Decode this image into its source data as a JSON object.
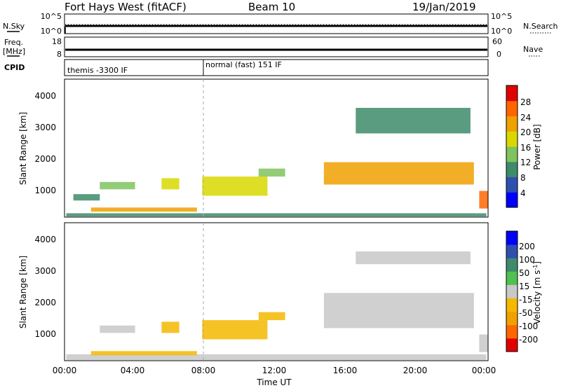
{
  "header": {
    "station": "Fort Hays West (fitACF)",
    "beam": "Beam 10",
    "date": "19/Jan/2019"
  },
  "top_panels": {
    "nsky_label": "N.Sky",
    "nsky_ticks": [
      "10^5",
      "10^0"
    ],
    "nsearch_label": "N.Search",
    "nsearch_ticks": [
      "10^5",
      "10^0"
    ],
    "freq_label_1": "Freq.",
    "freq_label_2": "[MHz]",
    "freq_ticks": [
      "18",
      "8"
    ],
    "nave_label": "Nave",
    "nave_ticks": [
      "60",
      "0"
    ],
    "cpid_label": "CPID",
    "cpid_segments": [
      "themis -3300 IF",
      "normal (fast) 151 IF"
    ]
  },
  "axes": {
    "ylabel": "Slant Range [km]",
    "y_ticks": [
      "1000",
      "2000",
      "3000",
      "4000"
    ],
    "xlabel": "Time UT",
    "x_ticks": [
      "00:00",
      "04:00",
      "08:00",
      "12:00",
      "16:00",
      "20:00",
      "00:00"
    ]
  },
  "colorbars": {
    "power": {
      "label": "Power [dB]",
      "ticks": [
        "4",
        "8",
        "12",
        "16",
        "20",
        "24",
        "28"
      ]
    },
    "velocity": {
      "label": "Velocity [m s",
      "label_sup": "-1",
      "label_end": "]",
      "ticks": [
        "200",
        "100",
        "50",
        "15",
        "-15",
        "-50",
        "-100",
        "-200"
      ]
    }
  },
  "chart_data": [
    {
      "type": "heatmap",
      "title": "Power",
      "xlabel": "Time UT",
      "ylabel": "Slant Range [km]",
      "x_range_hours": [
        0,
        24
      ],
      "ylim_km": [
        180,
        4500
      ],
      "colorbar": {
        "label": "Power [dB]",
        "range": [
          0,
          30
        ],
        "colors": [
          "#0000ff",
          "#2f4fb0",
          "#3d8b6a",
          "#7fc35f",
          "#d8d800",
          "#f0a000",
          "#ff6600",
          "#e00000"
        ]
      },
      "regions": [
        {
          "t": [
            0.1,
            23.9
          ],
          "r": [
            200,
            300
          ],
          "value": 10
        },
        {
          "t": [
            1.5,
            7.5
          ],
          "r": [
            350,
            480
          ],
          "value": 20
        },
        {
          "t": [
            0.5,
            2.0
          ],
          "r": [
            700,
            900
          ],
          "value": 10
        },
        {
          "t": [
            2.0,
            4.0
          ],
          "r": [
            1050,
            1280
          ],
          "value": 12
        },
        {
          "t": [
            5.5,
            6.5
          ],
          "r": [
            1050,
            1400
          ],
          "value": 16
        },
        {
          "t": [
            7.8,
            11.5
          ],
          "r": [
            850,
            1450
          ],
          "value": 18
        },
        {
          "t": [
            11.0,
            12.5
          ],
          "r": [
            1450,
            1700
          ],
          "value": 14
        },
        {
          "t": [
            14.7,
            23.2
          ],
          "r": [
            1200,
            1900
          ],
          "value": 22
        },
        {
          "t": [
            16.5,
            23.0
          ],
          "r": [
            2800,
            3600
          ],
          "value": 10
        },
        {
          "t": [
            23.5,
            24.0
          ],
          "r": [
            450,
            1000
          ],
          "value": 26
        }
      ]
    },
    {
      "type": "heatmap",
      "title": "Velocity",
      "xlabel": "Time UT",
      "ylabel": "Slant Range [km]",
      "x_range_hours": [
        0,
        24
      ],
      "ylim_km": [
        180,
        4500
      ],
      "colorbar": {
        "label": "Velocity [m s-1]",
        "range": [
          -250,
          250
        ],
        "colors": [
          "#e00000",
          "#ff6600",
          "#f0a000",
          "#f5b800",
          "#c8c8c8",
          "#50c050",
          "#3d8b6a",
          "#2f4fb0",
          "#0000ff"
        ]
      },
      "regions": [
        {
          "t": [
            0.1,
            23.9
          ],
          "r": [
            200,
            380
          ],
          "value": 20
        },
        {
          "t": [
            1.5,
            7.5
          ],
          "r": [
            350,
            480
          ],
          "value": -30
        },
        {
          "t": [
            2.0,
            4.0
          ],
          "r": [
            1050,
            1280
          ],
          "value": 0
        },
        {
          "t": [
            5.5,
            6.5
          ],
          "r": [
            1050,
            1400
          ],
          "value": -40
        },
        {
          "t": [
            7.8,
            11.5
          ],
          "r": [
            850,
            1450
          ],
          "value": -40
        },
        {
          "t": [
            11.0,
            12.5
          ],
          "r": [
            1450,
            1700
          ],
          "value": -40
        },
        {
          "t": [
            14.7,
            23.2
          ],
          "r": [
            1200,
            2300
          ],
          "value": 0
        },
        {
          "t": [
            16.5,
            23.0
          ],
          "r": [
            3200,
            3600
          ],
          "value": 0
        },
        {
          "t": [
            23.5,
            24.0
          ],
          "r": [
            450,
            1000
          ],
          "value": 0
        }
      ]
    }
  ]
}
